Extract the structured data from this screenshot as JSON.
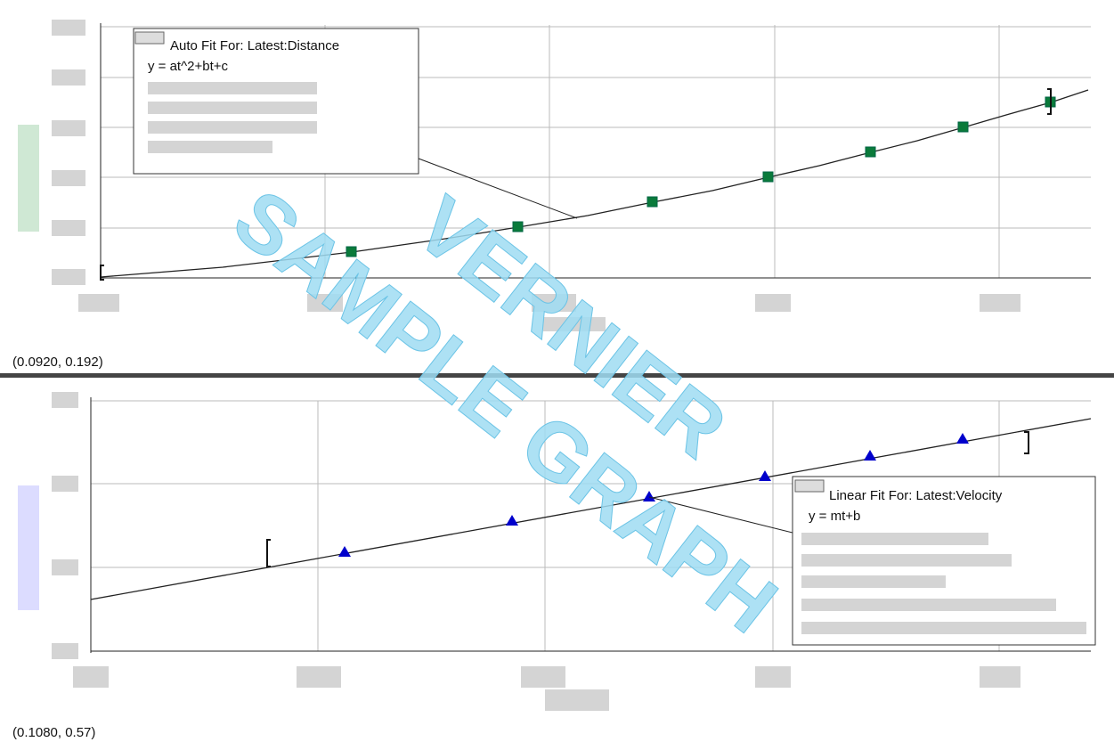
{
  "top_panel": {
    "fit_box": {
      "title": "Auto Fit For:  Latest:Distance",
      "equation": "y = at^2+bt+c"
    },
    "coordinates": "(0.0920, 0.192)"
  },
  "bottom_panel": {
    "fit_box": {
      "title": "Linear Fit For:  Latest:Velocity",
      "equation": "y = mt+b"
    },
    "coordinates": "(0.1080, 0.57)"
  },
  "watermark": {
    "line1": "VERNIER",
    "line2": "SAMPLE GRAPH"
  }
}
